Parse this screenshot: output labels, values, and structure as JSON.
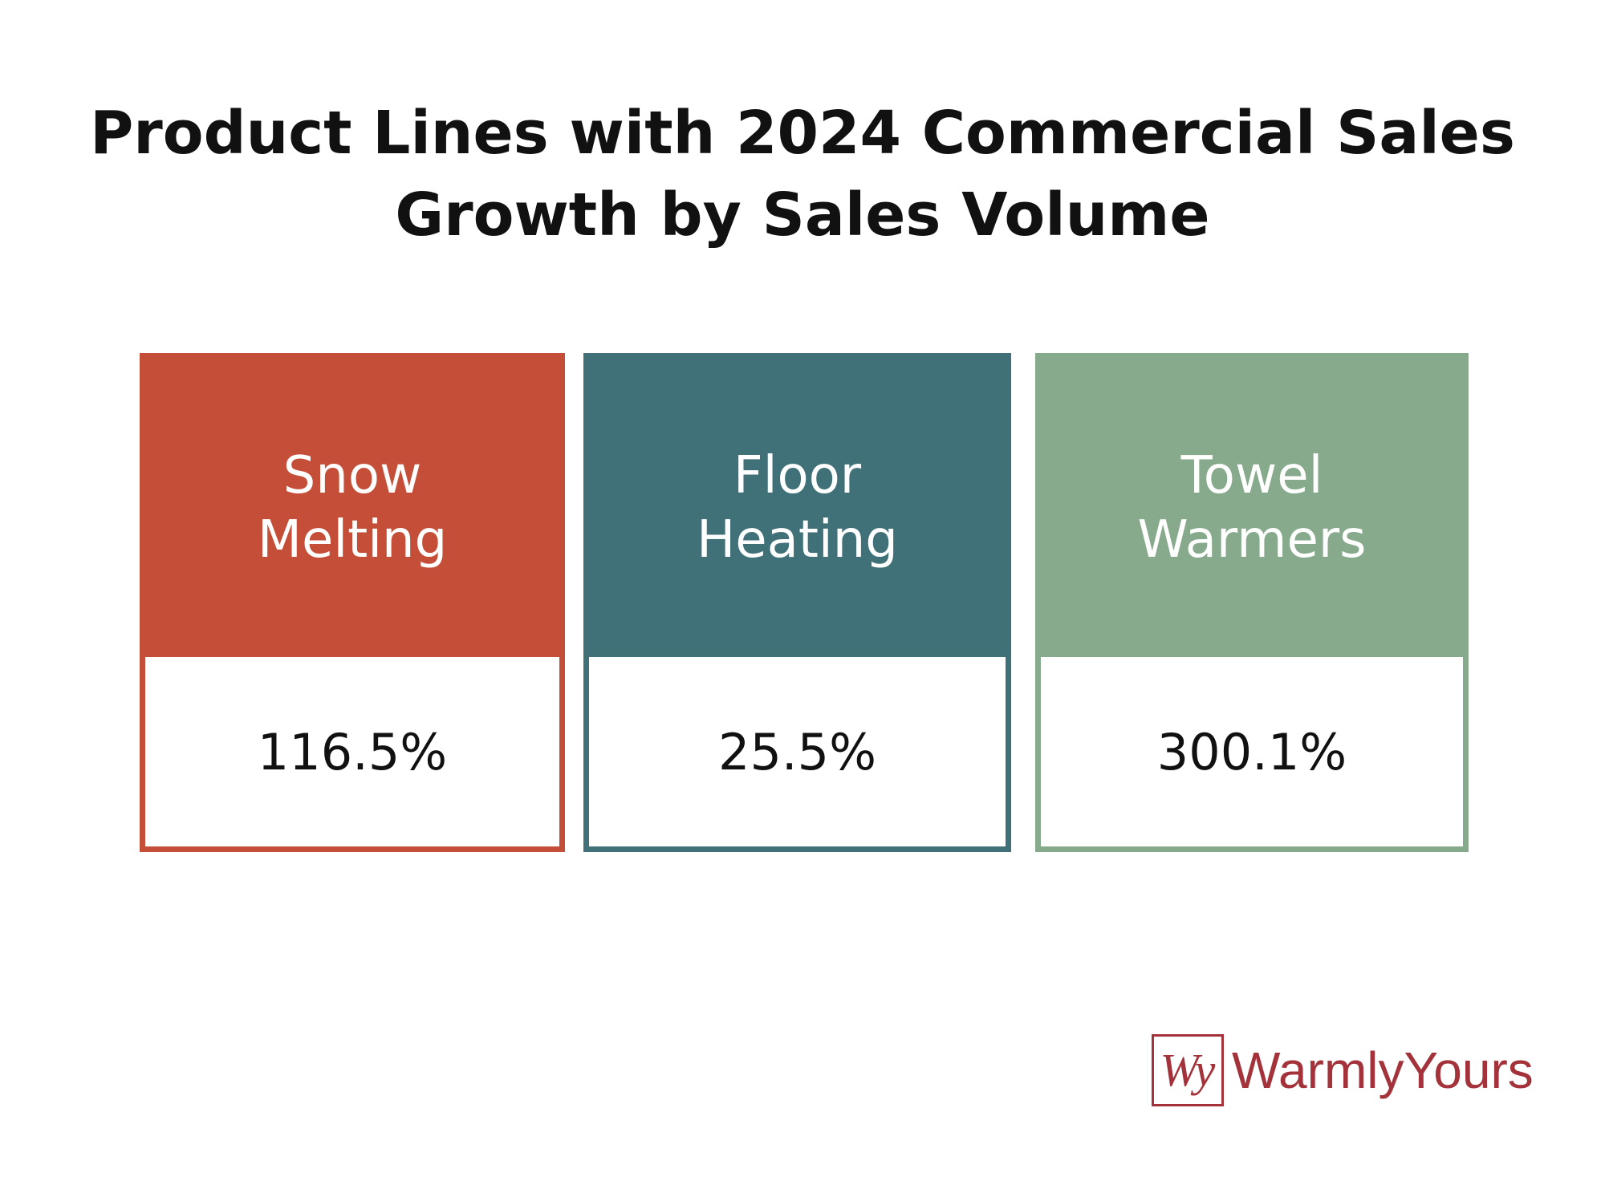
{
  "header": {
    "title": "Product Lines with 2024 Commercial Sales Growth by Sales Volume"
  },
  "cards": [
    {
      "label": "Snow Melting",
      "value": "116.5%",
      "color": "#c44e38"
    },
    {
      "label": "Floor Heating",
      "value": "25.5%",
      "color": "#417178"
    },
    {
      "label": "Towel Warmers",
      "value": "300.1%",
      "color": "#87a98c"
    }
  ],
  "logo": {
    "mark": "Wy",
    "text": "WarmlyYours",
    "color": "#a3323a"
  }
}
